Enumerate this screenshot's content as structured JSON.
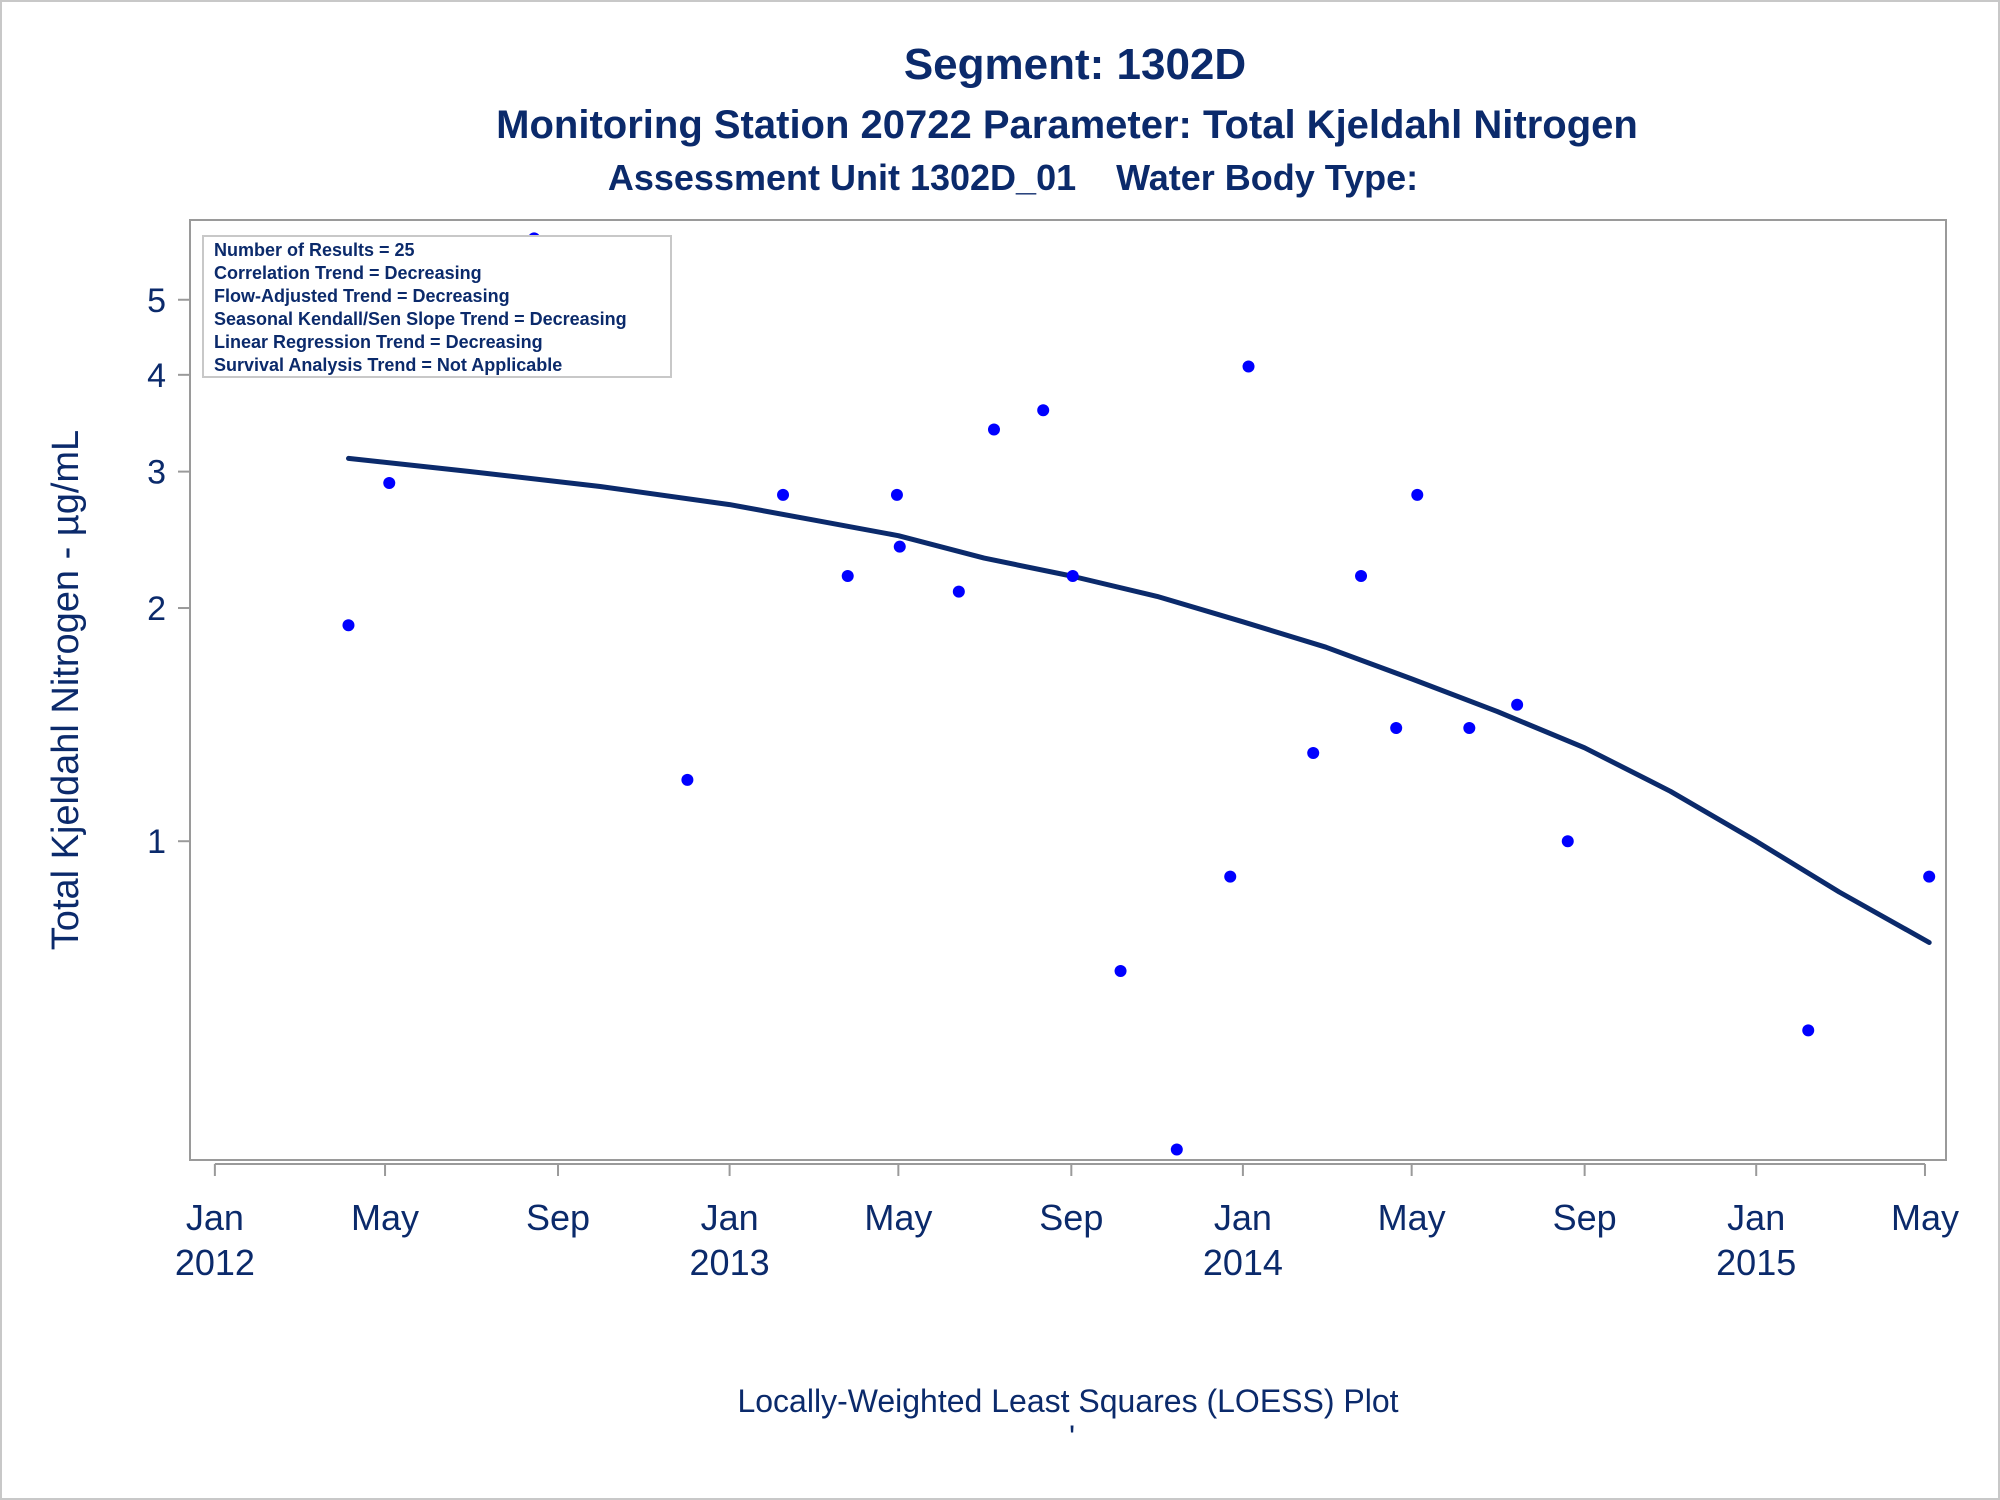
{
  "titles": {
    "line1": "Segment: 1302D",
    "line2": "Monitoring Station 20722 Parameter: Total Kjeldahl Nitrogen",
    "line3": "Assessment Unit 1302D_01    Water Body Type:"
  },
  "stats_box": [
    "Number of Results = 25",
    "Correlation Trend = Decreasing",
    "Flow-Adjusted Trend = Decreasing",
    "Seasonal Kendall/Sen Slope Trend = Decreasing",
    "Linear Regression Trend = Decreasing",
    "Survival Analysis Trend = Not Applicable"
  ],
  "footnote": "Locally-Weighted Least Squares (LOESS) Plot",
  "footnote_mark": "'",
  "colors": {
    "text": "#0b2a6b",
    "points": "#0000ff",
    "loess_line": "#0b2a6b",
    "frame": "#9a9a9a"
  },
  "chart_data": {
    "type": "scatter",
    "title": "Segment: 1302D",
    "xlabel": "",
    "ylabel": "Total Kjeldahl Nitrogen -  µg/mL",
    "y_scale": "log",
    "ylim": [
      0.39,
      6.3
    ],
    "xlim": [
      "2011-12-20",
      "2015-05-06"
    ],
    "x_ticks": [
      {
        "date": "2012-01-01",
        "label1": "Jan",
        "label2": "2012"
      },
      {
        "date": "2012-05-01",
        "label1": "May",
        "label2": ""
      },
      {
        "date": "2012-09-01",
        "label1": "Sep",
        "label2": ""
      },
      {
        "date": "2013-01-01",
        "label1": "Jan",
        "label2": "2013"
      },
      {
        "date": "2013-05-01",
        "label1": "May",
        "label2": ""
      },
      {
        "date": "2013-09-01",
        "label1": "Sep",
        "label2": ""
      },
      {
        "date": "2014-01-01",
        "label1": "Jan",
        "label2": "2014"
      },
      {
        "date": "2014-05-01",
        "label1": "May",
        "label2": ""
      },
      {
        "date": "2014-09-01",
        "label1": "Sep",
        "label2": ""
      },
      {
        "date": "2015-01-01",
        "label1": "Jan",
        "label2": "2015"
      },
      {
        "date": "2015-05-01",
        "label1": "May",
        "label2": ""
      }
    ],
    "y_ticks": [
      1,
      2,
      3,
      4,
      5
    ],
    "series": [
      {
        "type": "scatter",
        "points": [
          {
            "x": "2012-04-05",
            "y": 1.9
          },
          {
            "x": "2012-05-04",
            "y": 2.9
          },
          {
            "x": "2012-08-15",
            "y": 6.0
          },
          {
            "x": "2012-12-02",
            "y": 1.2
          },
          {
            "x": "2013-02-08",
            "y": 2.8
          },
          {
            "x": "2013-03-26",
            "y": 2.2
          },
          {
            "x": "2013-04-30",
            "y": 2.8
          },
          {
            "x": "2013-05-02",
            "y": 2.4
          },
          {
            "x": "2013-06-13",
            "y": 2.1
          },
          {
            "x": "2013-07-08",
            "y": 3.4
          },
          {
            "x": "2013-08-12",
            "y": 3.6
          },
          {
            "x": "2013-09-02",
            "y": 2.2
          },
          {
            "x": "2013-10-06",
            "y": 0.68
          },
          {
            "x": "2013-11-15",
            "y": 0.4
          },
          {
            "x": "2013-12-23",
            "y": 0.9
          },
          {
            "x": "2014-01-05",
            "y": 4.1
          },
          {
            "x": "2014-02-20",
            "y": 1.3
          },
          {
            "x": "2014-03-26",
            "y": 2.2
          },
          {
            "x": "2014-04-20",
            "y": 1.4
          },
          {
            "x": "2014-05-05",
            "y": 2.8
          },
          {
            "x": "2014-06-11",
            "y": 1.4
          },
          {
            "x": "2014-07-15",
            "y": 1.5
          },
          {
            "x": "2014-08-20",
            "y": 1.0
          },
          {
            "x": "2015-02-07",
            "y": 0.57
          },
          {
            "x": "2015-05-04",
            "y": 0.9
          }
        ]
      },
      {
        "type": "line",
        "points": [
          {
            "x": "2012-04-05",
            "y": 3.12
          },
          {
            "x": "2012-07-01",
            "y": 3.0
          },
          {
            "x": "2012-10-01",
            "y": 2.87
          },
          {
            "x": "2013-01-01",
            "y": 2.72
          },
          {
            "x": "2013-03-01",
            "y": 2.6
          },
          {
            "x": "2013-05-01",
            "y": 2.48
          },
          {
            "x": "2013-07-01",
            "y": 2.32
          },
          {
            "x": "2013-09-01",
            "y": 2.2
          },
          {
            "x": "2013-11-01",
            "y": 2.07
          },
          {
            "x": "2014-01-01",
            "y": 1.92
          },
          {
            "x": "2014-03-01",
            "y": 1.78
          },
          {
            "x": "2014-05-01",
            "y": 1.62
          },
          {
            "x": "2014-07-01",
            "y": 1.47
          },
          {
            "x": "2014-09-01",
            "y": 1.32
          },
          {
            "x": "2014-11-01",
            "y": 1.16
          },
          {
            "x": "2015-01-01",
            "y": 1.0
          },
          {
            "x": "2015-03-01",
            "y": 0.86
          },
          {
            "x": "2015-05-04",
            "y": 0.74
          }
        ]
      }
    ]
  }
}
